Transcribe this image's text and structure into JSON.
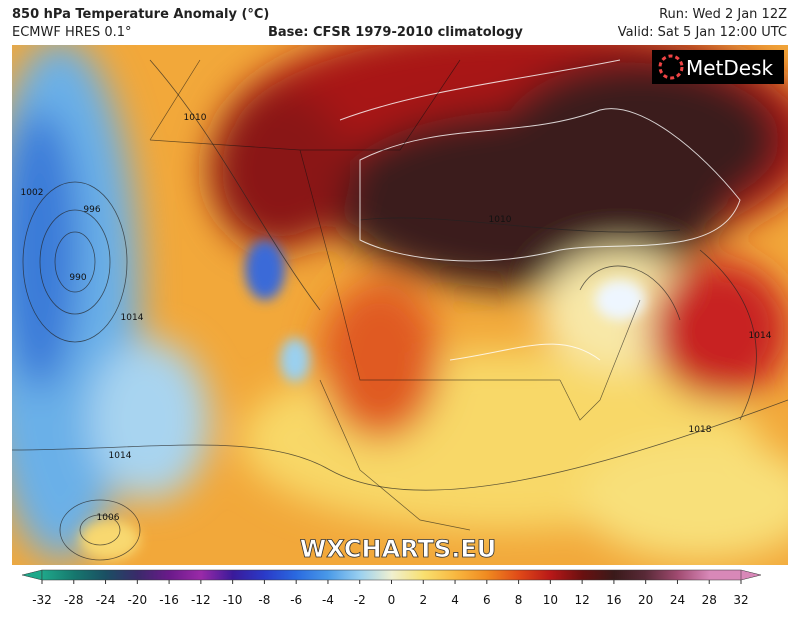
{
  "header": {
    "title": "850 hPa Temperature Anomaly (°C)",
    "model": "ECMWF HRES 0.1°",
    "base": "Base: CFSR 1979-2010 climatology",
    "run": "Run: Wed 2 Jan 12Z",
    "valid": "Valid: Sat 5 Jan 12:00 UTC"
  },
  "logo": "MetDesk",
  "watermark": "WXCHARTS.EU",
  "isobar_labels": [
    "1010",
    "1014",
    "990",
    "996",
    "1002",
    "1006",
    "1018",
    "1014",
    "1010",
    "1014"
  ],
  "colorbar": {
    "ticks": [
      -32,
      -28,
      -24,
      -20,
      -16,
      -12,
      -10,
      -8,
      -6,
      -4,
      -2,
      0,
      2,
      4,
      6,
      8,
      10,
      12,
      16,
      20,
      24,
      28,
      32
    ],
    "colors": [
      "#1fa88a",
      "#16786e",
      "#1a4f63",
      "#3a2a6a",
      "#6a1a8a",
      "#9a2aa8",
      "#3a1a9a",
      "#2a3ac8",
      "#2a6ae0",
      "#4a9ae8",
      "#9ad0f0",
      "#f0f0d0",
      "#f8e070",
      "#f8b840",
      "#f08a20",
      "#e04a18",
      "#b81818",
      "#6a1010",
      "#3a1a1a",
      "#5a2a38",
      "#a04a70",
      "#d888b8"
    ]
  }
}
